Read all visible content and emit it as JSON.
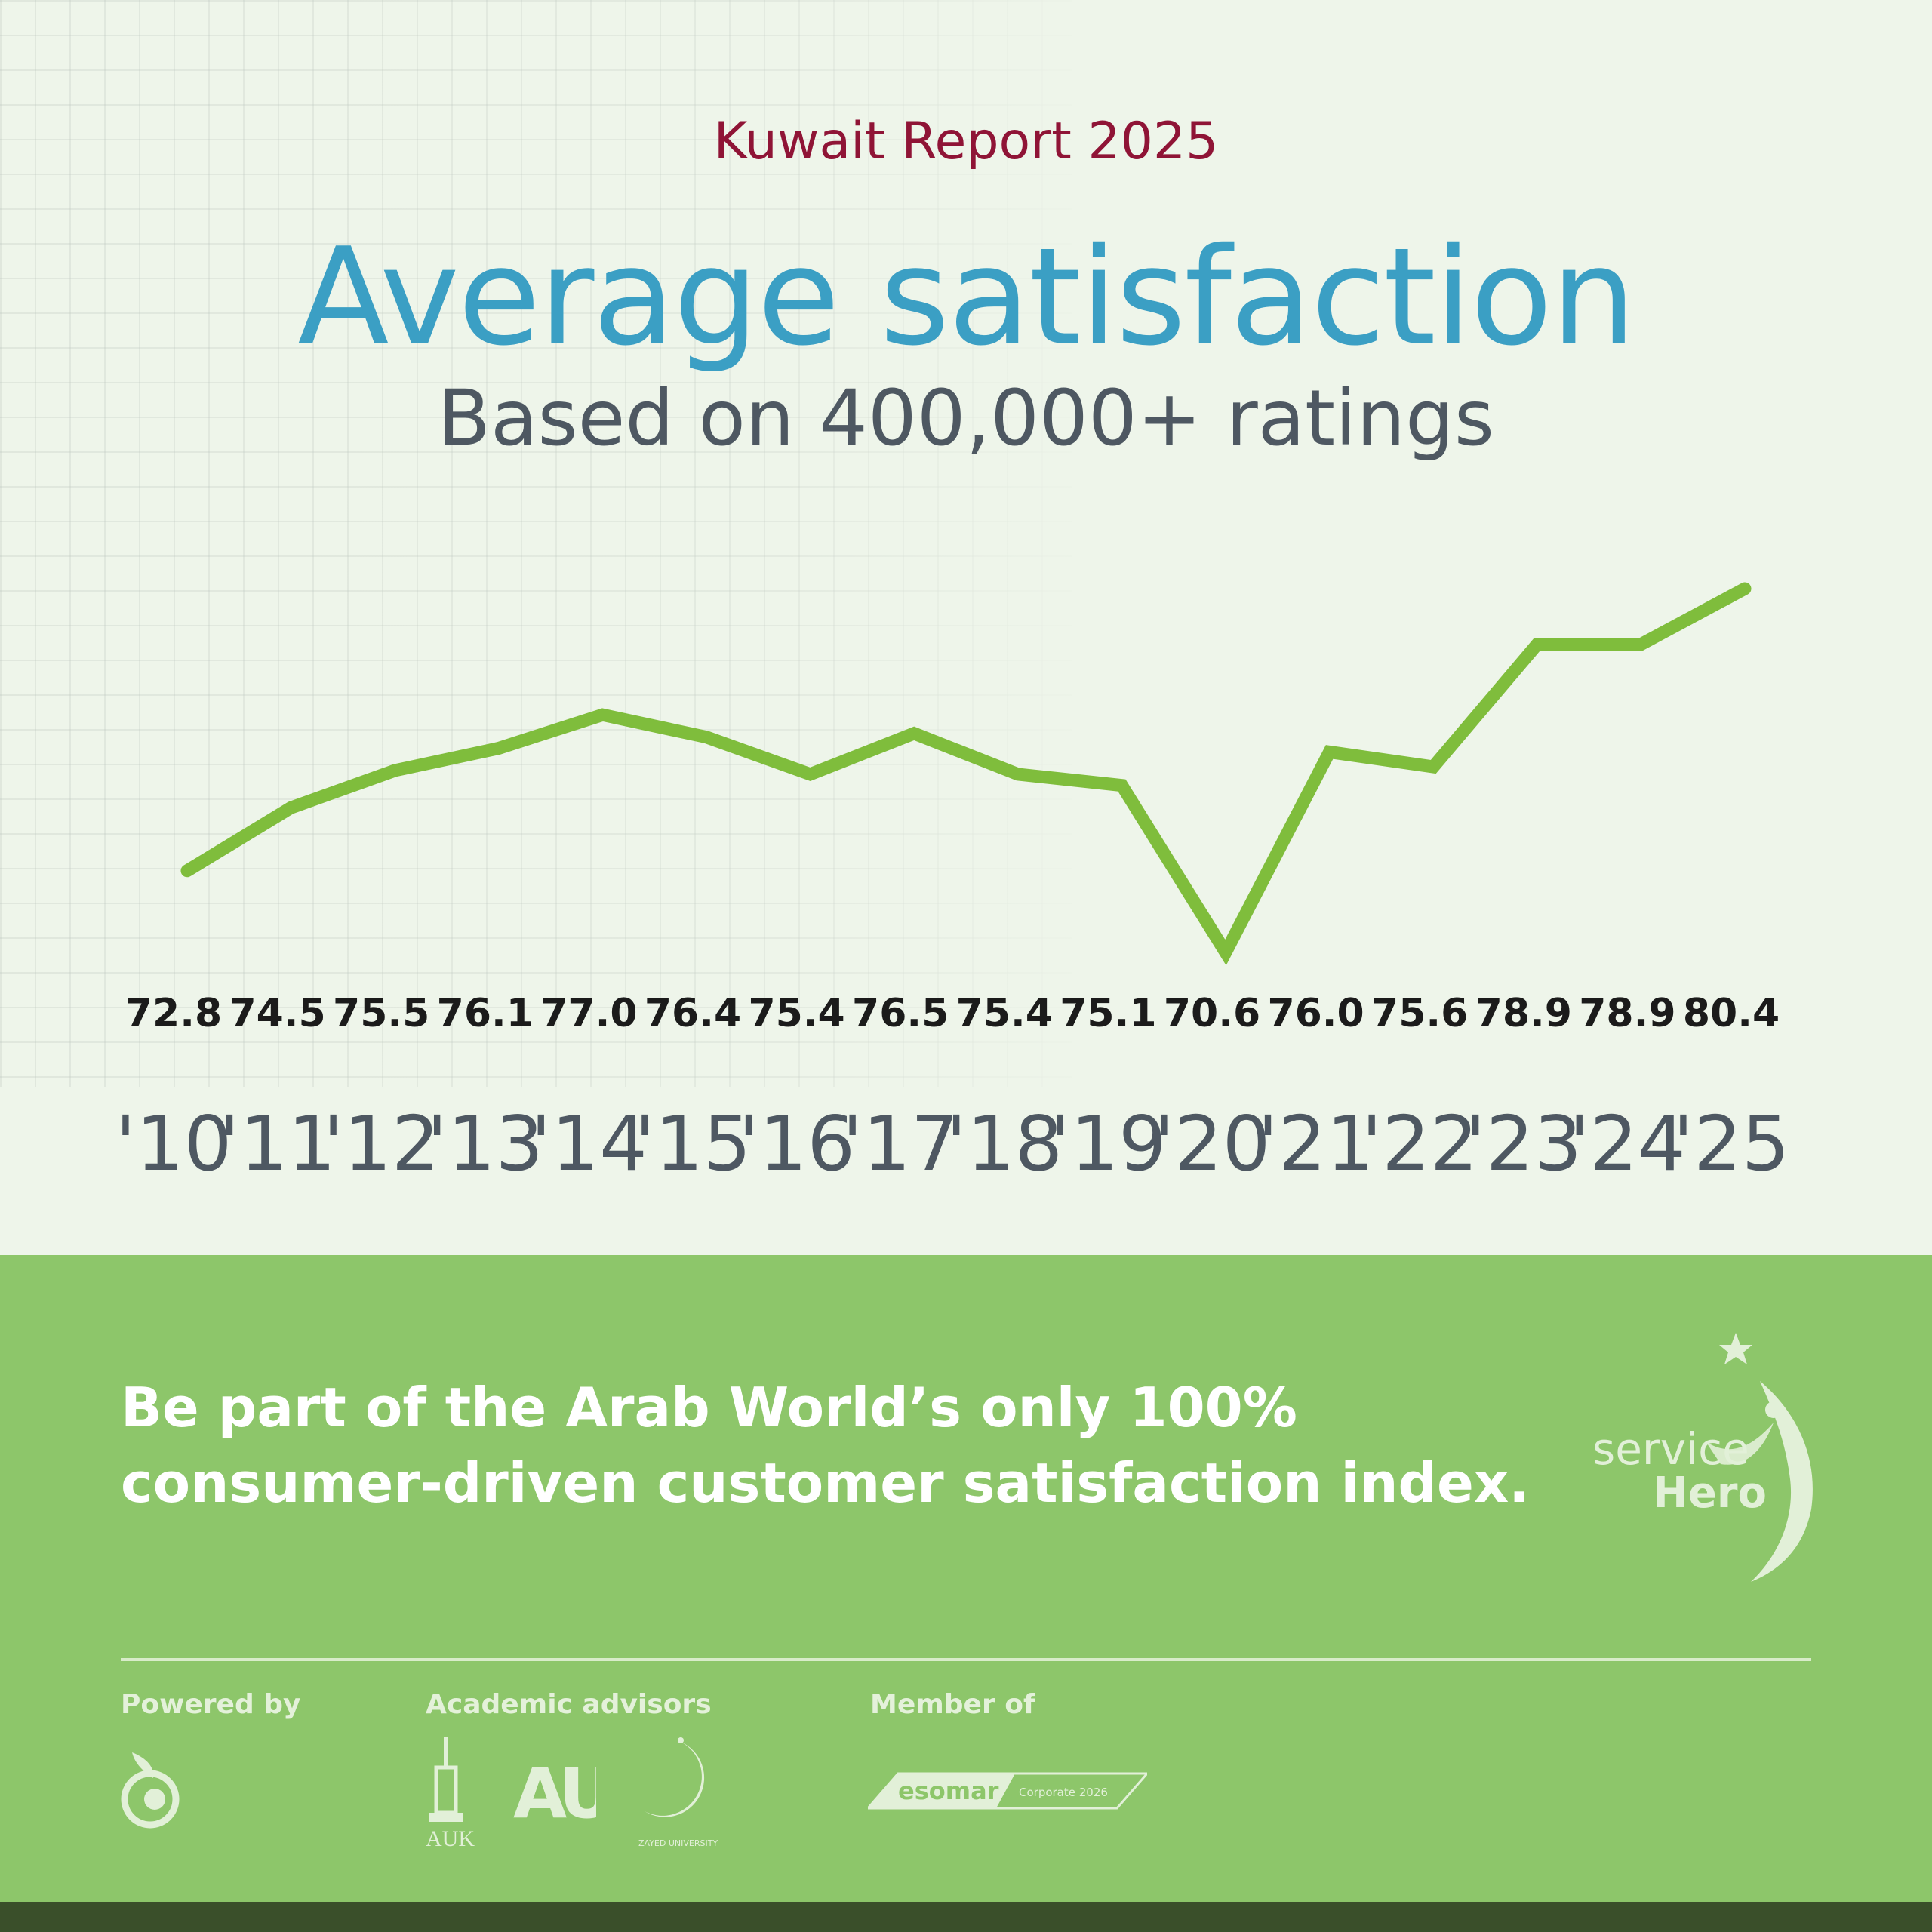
{
  "header": {
    "kicker": "Kuwait Report 2025",
    "title": "Average satisfaction",
    "subtitle": "Based on 400,000+ ratings"
  },
  "chart_data": {
    "type": "line",
    "categories": [
      "'10",
      "'11",
      "'12",
      "'13",
      "'14",
      "'15",
      "'16",
      "'17",
      "'18",
      "'19",
      "'20",
      "'21",
      "'22",
      "'23",
      "'24",
      "'25"
    ],
    "values": [
      72.8,
      74.5,
      75.5,
      76.1,
      77.0,
      76.4,
      75.4,
      76.5,
      75.4,
      75.1,
      70.6,
      76.0,
      75.6,
      78.9,
      78.9,
      80.4
    ],
    "value_labels": [
      "72.8",
      "74.5",
      "75.5",
      "76.1",
      "77.0",
      "76.4",
      "75.4",
      "76.5",
      "75.4",
      "75.1",
      "70.6",
      "76.0",
      "75.6",
      "78.9",
      "78.9",
      "80.4"
    ],
    "line_color": "#7fbd3c",
    "grid": false,
    "legend": "none"
  },
  "footer": {
    "cta_line1": "Be part of the Arab World’s only 100%",
    "cta_line2": "consumer-driven customer satisfaction index.",
    "brand_line1": "service",
    "brand_line2": "Hero",
    "powered_by_label": "Powered by",
    "academic_label": "Academic advisors",
    "member_label": "Member of",
    "auk_text": "AUK",
    "au_text": "AU",
    "zayed_text": "ZAYED UNIVERSITY",
    "esomar_text": "esomar",
    "esomar_sub": "Corporate 2026"
  },
  "colors": {
    "kicker": "#8f1436",
    "title": "#3b9fc4",
    "band": "#8dc66a",
    "line": "#7fbd3c"
  }
}
